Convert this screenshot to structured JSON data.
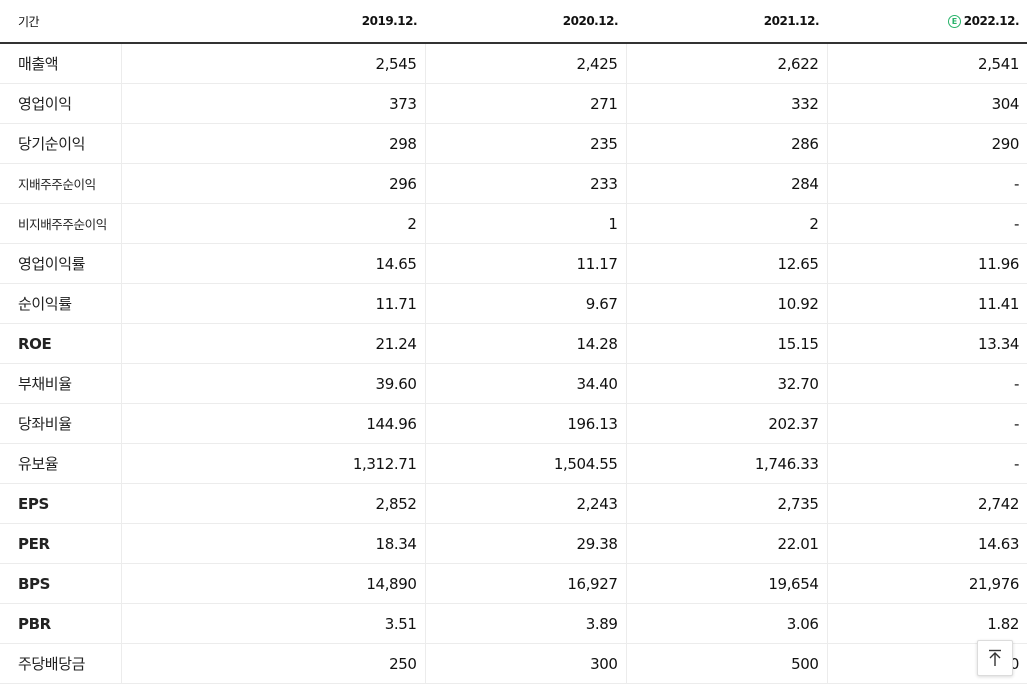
{
  "header": {
    "period_label": "기간",
    "years": [
      "2019.12.",
      "2020.12.",
      "2021.12.",
      "2022.12."
    ],
    "estimate_badge": "E"
  },
  "rows": [
    {
      "label": "매출액",
      "values": [
        "2,545",
        "2,425",
        "2,622",
        "2,541"
      ]
    },
    {
      "label": "영업이익",
      "values": [
        "373",
        "271",
        "332",
        "304"
      ]
    },
    {
      "label": "당기순이익",
      "values": [
        "298",
        "235",
        "286",
        "290"
      ]
    },
    {
      "label": "지배주주순이익",
      "values": [
        "296",
        "233",
        "284",
        "-"
      ]
    },
    {
      "label": "비지배주주순이익",
      "values": [
        "2",
        "1",
        "2",
        "-"
      ]
    },
    {
      "label": "영업이익률",
      "values": [
        "14.65",
        "11.17",
        "12.65",
        "11.96"
      ]
    },
    {
      "label": "순이익률",
      "values": [
        "11.71",
        "9.67",
        "10.92",
        "11.41"
      ]
    },
    {
      "label": "ROE",
      "values": [
        "21.24",
        "14.28",
        "15.15",
        "13.34"
      ]
    },
    {
      "label": "부채비율",
      "values": [
        "39.60",
        "34.40",
        "32.70",
        "-"
      ]
    },
    {
      "label": "당좌비율",
      "values": [
        "144.96",
        "196.13",
        "202.37",
        "-"
      ]
    },
    {
      "label": "유보율",
      "values": [
        "1,312.71",
        "1,504.55",
        "1,746.33",
        "-"
      ]
    },
    {
      "label": "EPS",
      "values": [
        "2,852",
        "2,243",
        "2,735",
        "2,742"
      ]
    },
    {
      "label": "PER",
      "values": [
        "18.34",
        "29.38",
        "22.01",
        "14.63"
      ]
    },
    {
      "label": "BPS",
      "values": [
        "14,890",
        "16,927",
        "19,654",
        "21,976"
      ]
    },
    {
      "label": "PBR",
      "values": [
        "3.51",
        "3.89",
        "3.06",
        "1.82"
      ]
    },
    {
      "label": "주당배당금",
      "values": [
        "250",
        "300",
        "500",
        "0"
      ]
    }
  ],
  "scroll_top_icon": "arrow-up-to-line-icon"
}
